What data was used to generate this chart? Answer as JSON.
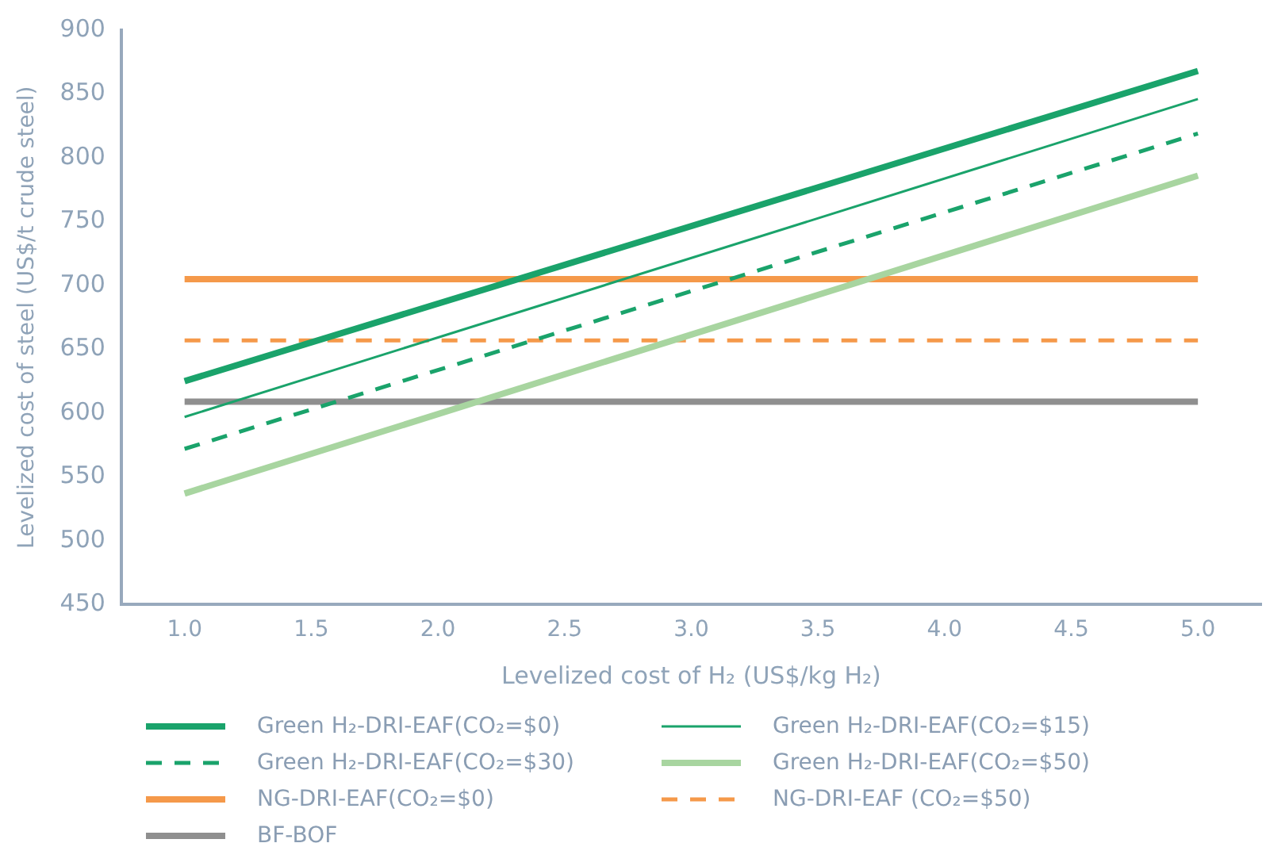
{
  "chart_data": {
    "type": "line",
    "xlabel": "Levelized cost of H₂ (US$/kg H₂)",
    "ylabel": "Levelized cost of steel (US$/t crude steel)",
    "x": [
      1,
      5
    ],
    "series": [
      {
        "name": "Green H₂-DRI-EAF(CO₂=$0)",
        "color": "#1aa36b",
        "values": [
          625,
          868
        ],
        "line_style": "solid"
      },
      {
        "name": "Green H₂-DRI-EAF(CO₂=$15)",
        "color": "#1aa36b",
        "values": [
          597,
          846
        ],
        "line_style": "solid"
      },
      {
        "name": "Green H₂-DRI-EAF(CO₂=$30)",
        "color": "#1aa36b",
        "values": [
          572,
          819
        ],
        "line_style": "dashed"
      },
      {
        "name": "Green H₂-DRI-EAF(CO₂=$50)",
        "color": "#a8d5a0",
        "values": [
          537,
          786
        ],
        "line_style": "solid"
      },
      {
        "name": "NG-DRI-EAF(CO₂=$0)",
        "color": "#f5994a",
        "values": [
          705,
          705
        ],
        "line_style": "solid"
      },
      {
        "name": "NG-DRI-EAF (CO₂=$50)",
        "color": "#f5994a",
        "values": [
          657,
          657
        ],
        "line_style": "dashed"
      },
      {
        "name": "BF-BOF",
        "color": "#8f8f8f",
        "values": [
          609,
          609
        ],
        "line_style": "solid"
      }
    ],
    "xlim": [
      0.75,
      5.25
    ],
    "xticks": [
      {
        "value": 1,
        "label": "1.0"
      },
      {
        "value": 1.5,
        "label": "1.5"
      },
      {
        "value": 2,
        "label": "2.0"
      },
      {
        "value": 2.5,
        "label": "2.5"
      },
      {
        "value": 3,
        "label": "3.0"
      },
      {
        "value": 3.5,
        "label": "3.5"
      },
      {
        "value": 4,
        "label": "4.0"
      },
      {
        "value": 4.5,
        "label": "4.5"
      },
      {
        "value": 5,
        "label": "5.0"
      }
    ],
    "ylim": [
      450,
      900
    ],
    "yticks": [
      450,
      500,
      550,
      600,
      650,
      700,
      750,
      800,
      850,
      900
    ],
    "grid": false,
    "legend": "bottom",
    "marker": "none"
  }
}
